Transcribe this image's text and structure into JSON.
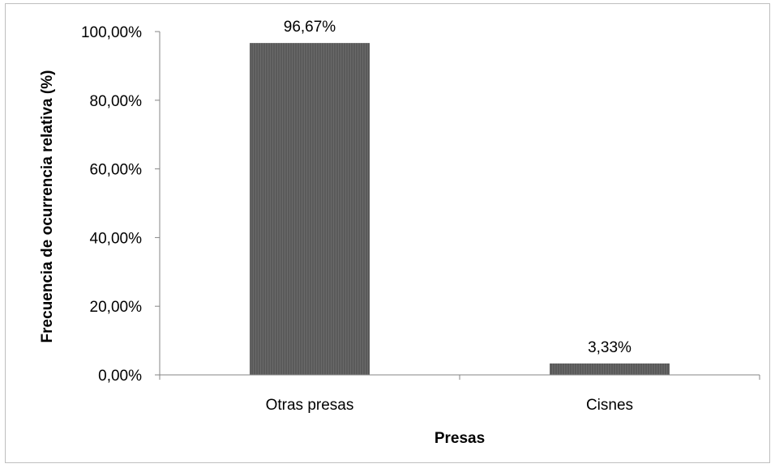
{
  "chart_data": {
    "type": "bar",
    "categories": [
      "Otras presas",
      "Cisnes"
    ],
    "values": [
      96.67,
      3.33
    ],
    "data_labels": [
      "96,67%",
      "3,33%"
    ],
    "title": "",
    "xlabel": "Presas",
    "ylabel": "Frecuencia de ocurrencia relativa (%)",
    "ylim": [
      0,
      100
    ],
    "yticks": [
      0,
      20,
      40,
      60,
      80,
      100
    ],
    "ytick_labels": [
      "0,00%",
      "20,00%",
      "40,00%",
      "60,00%",
      "80,00%",
      "100,00%"
    ],
    "grid": false,
    "legend": "none",
    "bar_color": "#595959",
    "axis_color": "#868686"
  }
}
